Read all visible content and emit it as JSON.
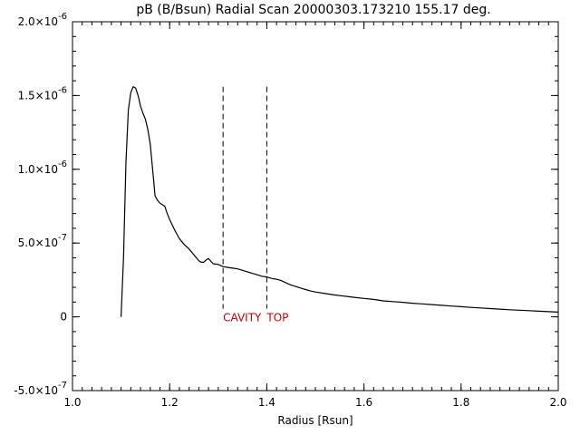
{
  "chart_data": {
    "type": "line",
    "title": "pB (B/Bsun) Radial Scan 20000303.173210 155.17 deg.",
    "xlabel": "Radius [Rsun]",
    "ylabel": "",
    "xlim": [
      1.0,
      2.0
    ],
    "ylim": [
      -5e-07,
      2e-06
    ],
    "grid": false,
    "x_ticks": [
      1.0,
      1.2,
      1.4,
      1.6,
      1.8,
      2.0
    ],
    "x_tick_labels": [
      "1.0",
      "1.2",
      "1.4",
      "1.6",
      "1.8",
      "2.0"
    ],
    "y_ticks": [
      -5e-07,
      0,
      5e-07,
      1e-06,
      1.5e-06,
      2e-06
    ],
    "y_tick_labels": [
      {
        "mantissa": "-5.0×10",
        "exp": "-7"
      },
      {
        "mantissa": "0",
        "exp": ""
      },
      {
        "mantissa": "5.0×10",
        "exp": "-7"
      },
      {
        "mantissa": "1.0×10",
        "exp": "-6"
      },
      {
        "mantissa": "1.5×10",
        "exp": "-6"
      },
      {
        "mantissa": "2.0×10",
        "exp": "-6"
      }
    ],
    "series": [
      {
        "color": "#000000",
        "x": [
          1.1,
          1.105,
          1.11,
          1.115,
          1.12,
          1.125,
          1.13,
          1.135,
          1.14,
          1.145,
          1.15,
          1.155,
          1.16,
          1.165,
          1.17,
          1.175,
          1.18,
          1.185,
          1.19,
          1.195,
          1.2,
          1.21,
          1.22,
          1.23,
          1.24,
          1.25,
          1.26,
          1.265,
          1.27,
          1.275,
          1.28,
          1.285,
          1.29,
          1.3,
          1.31,
          1.32,
          1.33,
          1.34,
          1.35,
          1.36,
          1.37,
          1.38,
          1.39,
          1.4,
          1.41,
          1.42,
          1.43,
          1.44,
          1.45,
          1.46,
          1.47,
          1.48,
          1.49,
          1.5,
          1.52,
          1.54,
          1.56,
          1.58,
          1.6,
          1.62,
          1.64,
          1.66,
          1.68,
          1.7,
          1.72,
          1.74,
          1.76,
          1.78,
          1.8,
          1.82,
          1.84,
          1.86,
          1.88,
          1.9,
          1.92,
          1.94,
          1.96,
          1.98,
          2.0
        ],
        "y": [
          0.0,
          4e-07,
          1.05e-06,
          1.4e-06,
          1.52e-06,
          1.56e-06,
          1.55e-06,
          1.5e-06,
          1.43e-06,
          1.38e-06,
          1.34e-06,
          1.27e-06,
          1.17e-06,
          1e-06,
          8.2e-07,
          7.9e-07,
          7.7e-07,
          7.6e-07,
          7.5e-07,
          7e-07,
          6.6e-07,
          5.9e-07,
          5.3e-07,
          4.9e-07,
          4.6e-07,
          4.2e-07,
          3.8e-07,
          3.7e-07,
          3.7e-07,
          3.85e-07,
          3.95e-07,
          3.75e-07,
          3.6e-07,
          3.55e-07,
          3.4e-07,
          3.35e-07,
          3.3e-07,
          3.25e-07,
          3.15e-07,
          3.05e-07,
          2.95e-07,
          2.85e-07,
          2.75e-07,
          2.7e-07,
          2.6e-07,
          2.55e-07,
          2.45e-07,
          2.3e-07,
          2.15e-07,
          2.05e-07,
          1.95e-07,
          1.85e-07,
          1.75e-07,
          1.68e-07,
          1.58e-07,
          1.48e-07,
          1.4e-07,
          1.32e-07,
          1.25e-07,
          1.18e-07,
          1.08e-07,
          1.03e-07,
          9.8e-08,
          9.2e-08,
          8.8e-08,
          8.3e-08,
          7.8e-08,
          7.3e-08,
          6.9e-08,
          6.4e-08,
          6e-08,
          5.6e-08,
          5.2e-08,
          4.8e-08,
          4.5e-08,
          4.2e-08,
          3.8e-08,
          3.5e-08,
          3.2e-08
        ]
      }
    ],
    "markers": [
      {
        "x": 1.31,
        "y_top": 1.56e-06,
        "y_bottom": 0.0,
        "style": "dashed",
        "label": "CAVITY"
      },
      {
        "x": 1.4,
        "y_top": 1.56e-06,
        "y_bottom": 0.0,
        "style": "dashed",
        "label": "TOP"
      }
    ],
    "annotation_color": "#cc0000"
  }
}
